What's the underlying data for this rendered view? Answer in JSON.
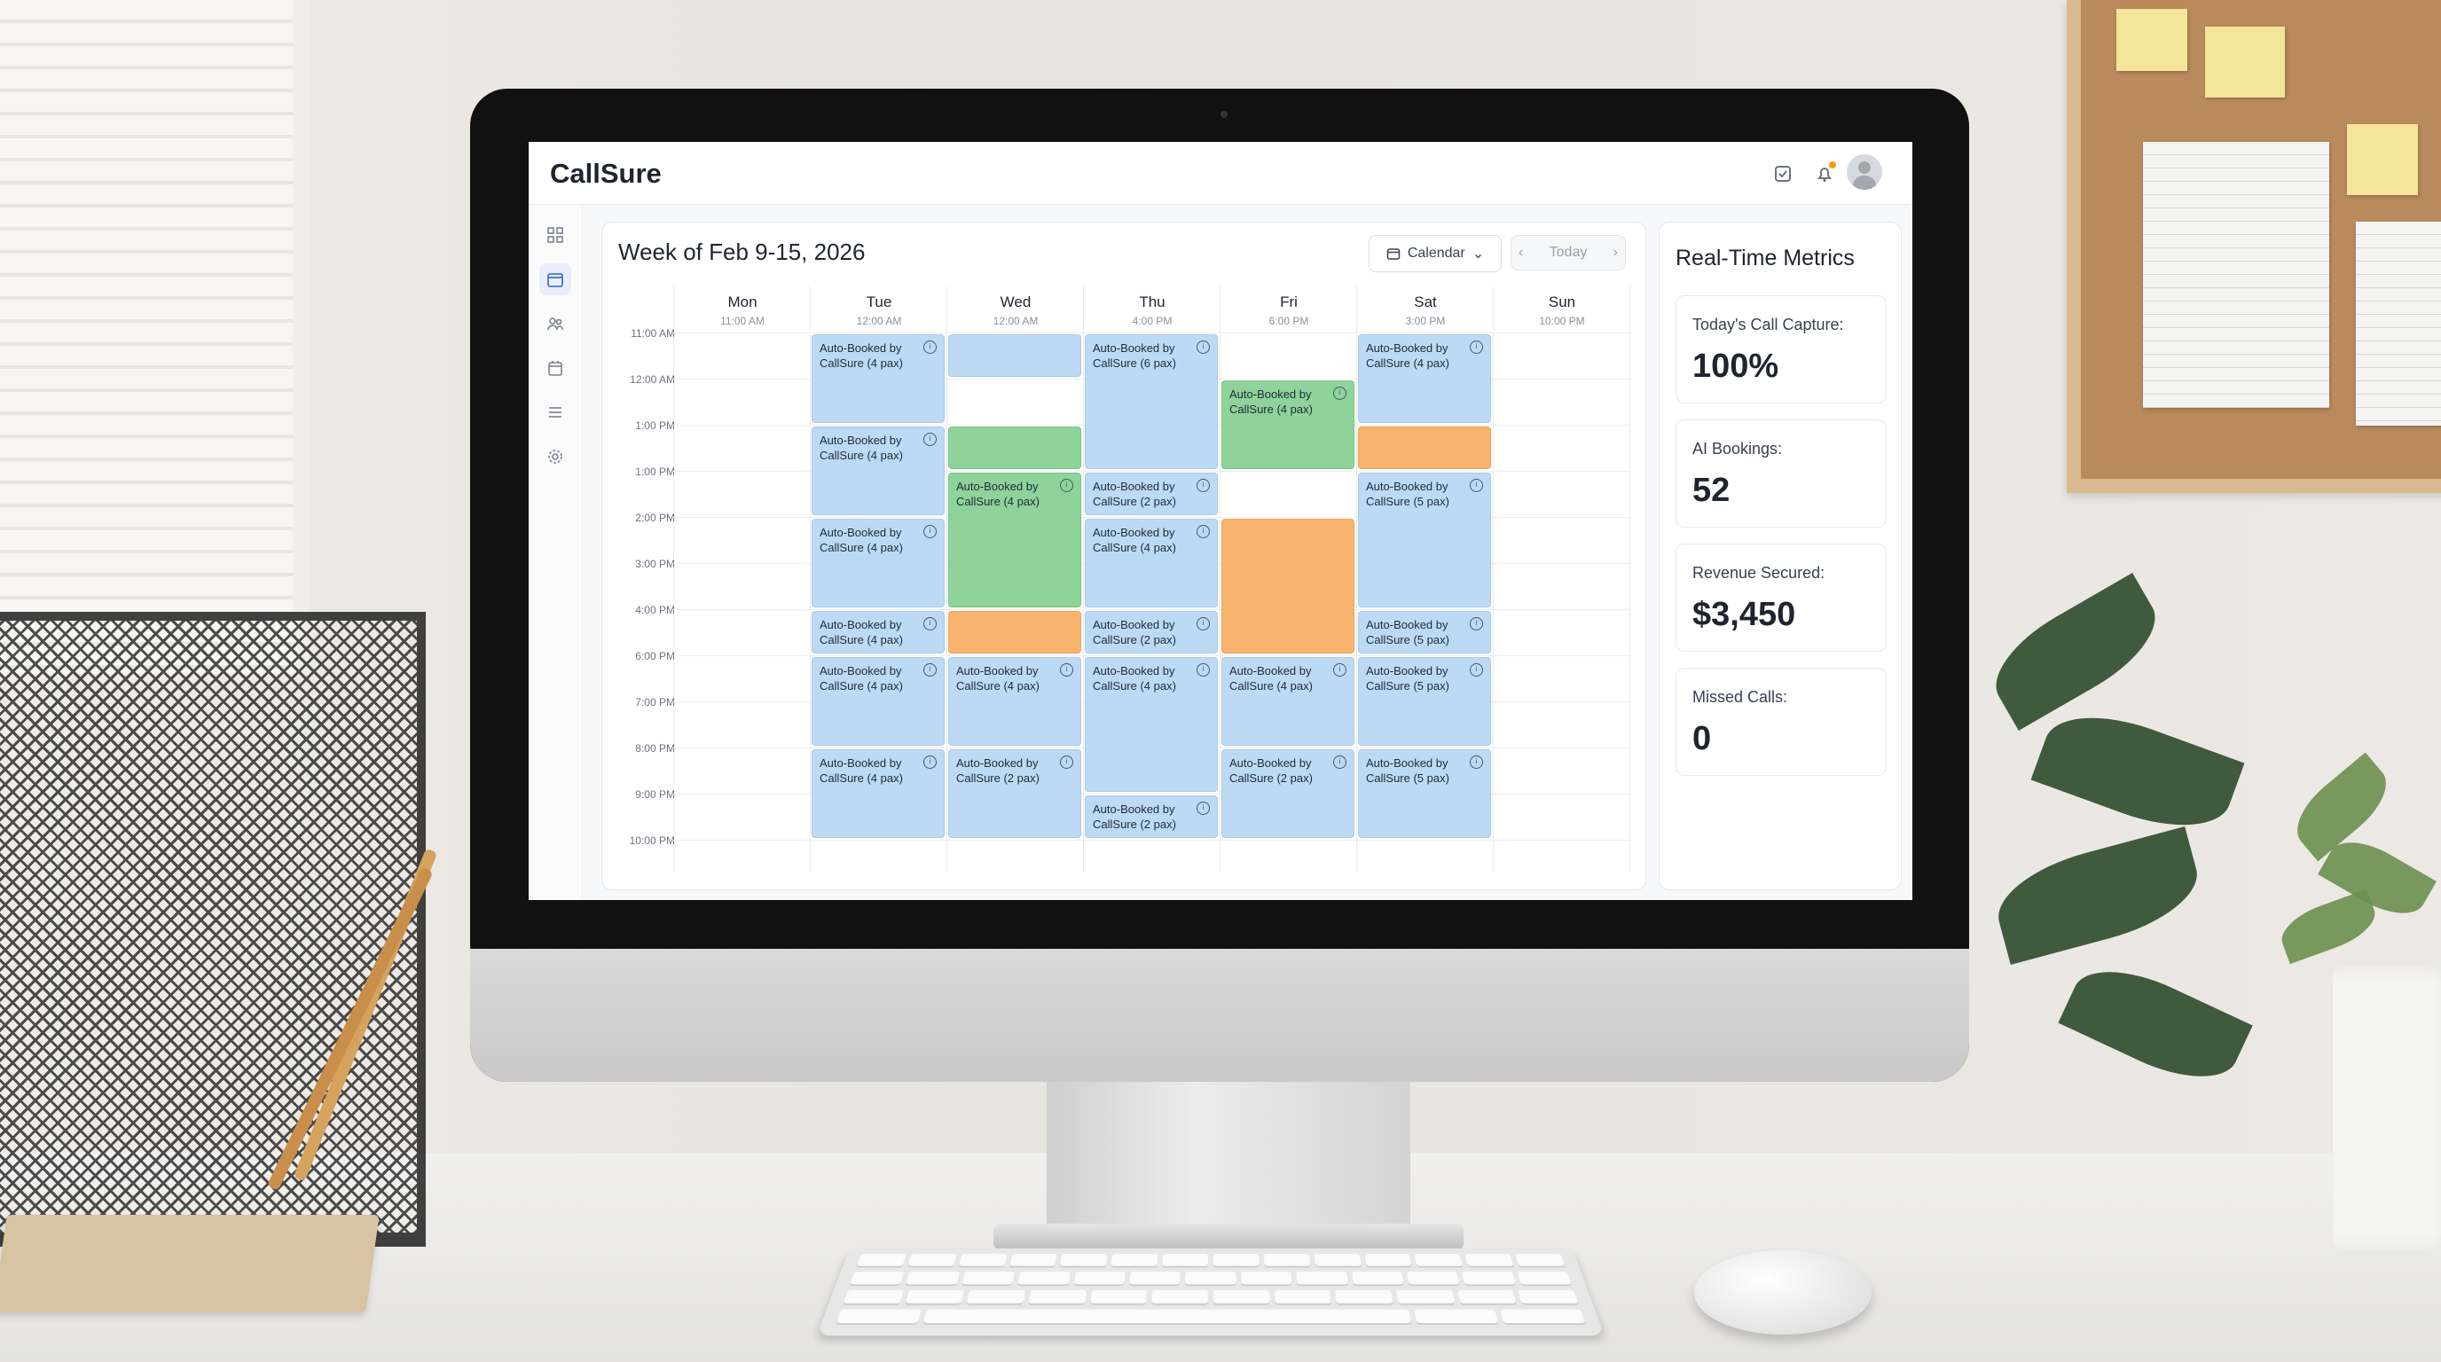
{
  "app": {
    "brand": "CallSure"
  },
  "calendar": {
    "title": "Week of Feb 9-15, 2026",
    "view_label": "Calendar",
    "today_label": "Today",
    "days": [
      {
        "name": "Mon",
        "time": "11:00 AM"
      },
      {
        "name": "Tue",
        "time": "12:00 AM"
      },
      {
        "name": "Wed",
        "time": "12:00 AM"
      },
      {
        "name": "Thu",
        "time": "4:00 PM"
      },
      {
        "name": "Fri",
        "time": "6:00 PM"
      },
      {
        "name": "Sat",
        "time": "3:00 PM"
      },
      {
        "name": "Sun",
        "time": "10:00 PM"
      }
    ],
    "time_slots": [
      "11:00 AM",
      "12:00 AM",
      "1:00 PM",
      "1:00 PM",
      "2:00 PM",
      "3:00 PM",
      "4:00 PM",
      "6:00 PM",
      "7:00 PM",
      "8:00 PM",
      "9:00 PM",
      "10:00 PM"
    ],
    "events": [
      {
        "day": 1,
        "start": 0,
        "span": 2,
        "color": "blue",
        "line1": "Auto-Booked by",
        "line2": "CallSure (4 pax)"
      },
      {
        "day": 1,
        "start": 2,
        "span": 2,
        "color": "blue",
        "line1": "Auto-Booked by",
        "line2": "CallSure (4 pax)"
      },
      {
        "day": 1,
        "start": 4,
        "span": 2,
        "color": "blue",
        "line1": "Auto-Booked by",
        "line2": "CallSure (4 pax)"
      },
      {
        "day": 1,
        "start": 6,
        "span": 1,
        "color": "blue",
        "line1": "Auto-Booked by",
        "line2": "CallSure (4 pax)"
      },
      {
        "day": 1,
        "start": 7,
        "span": 2,
        "color": "blue",
        "line1": "Auto-Booked by",
        "line2": "CallSure (4 pax)"
      },
      {
        "day": 1,
        "start": 9,
        "span": 2,
        "color": "blue",
        "line1": "Auto-Booked by",
        "line2": "CallSure (4 pax)"
      },
      {
        "day": 2,
        "start": 0,
        "span": 1,
        "color": "blue",
        "line1": "",
        "line2": ""
      },
      {
        "day": 2,
        "start": 2,
        "span": 1,
        "color": "green",
        "line1": "",
        "line2": ""
      },
      {
        "day": 2,
        "start": 3,
        "span": 3,
        "color": "green",
        "line1": "Auto-Booked by",
        "line2": "CallSure (4 pax)"
      },
      {
        "day": 2,
        "start": 6,
        "span": 1,
        "color": "orange",
        "line1": "",
        "line2": ""
      },
      {
        "day": 2,
        "start": 7,
        "span": 2,
        "color": "blue",
        "line1": "Auto-Booked by",
        "line2": "CallSure (4 pax)"
      },
      {
        "day": 2,
        "start": 9,
        "span": 2,
        "color": "blue",
        "line1": "Auto-Booked by",
        "line2": "CallSure (2 pax)"
      },
      {
        "day": 3,
        "start": 0,
        "span": 3,
        "color": "blue",
        "line1": "Auto-Booked by",
        "line2": "CallSure (6 pax)"
      },
      {
        "day": 3,
        "start": 3,
        "span": 1,
        "color": "blue",
        "line1": "Auto-Booked by",
        "line2": "CallSure (2 pax)"
      },
      {
        "day": 3,
        "start": 4,
        "span": 2,
        "color": "blue",
        "line1": "Auto-Booked by",
        "line2": "CallSure (4 pax)"
      },
      {
        "day": 3,
        "start": 6,
        "span": 1,
        "color": "blue",
        "line1": "Auto-Booked by",
        "line2": "CallSure (2 pax)"
      },
      {
        "day": 3,
        "start": 7,
        "span": 3,
        "color": "blue",
        "line1": "Auto-Booked by",
        "line2": "CallSure (4 pax)"
      },
      {
        "day": 3,
        "start": 10,
        "span": 1,
        "color": "blue",
        "line1": "Auto-Booked by",
        "line2": "CallSure (2 pax)"
      },
      {
        "day": 4,
        "start": 1,
        "span": 2,
        "color": "green",
        "line1": "Auto-Booked by",
        "line2": "CallSure (4 pax)"
      },
      {
        "day": 4,
        "start": 4,
        "span": 3,
        "color": "orange",
        "line1": "",
        "line2": ""
      },
      {
        "day": 4,
        "start": 7,
        "span": 2,
        "color": "blue",
        "line1": "Auto-Booked by",
        "line2": "CallSure (4 pax)"
      },
      {
        "day": 4,
        "start": 9,
        "span": 2,
        "color": "blue",
        "line1": "Auto-Booked by",
        "line2": "CallSure (2 pax)"
      },
      {
        "day": 5,
        "start": 0,
        "span": 2,
        "color": "blue",
        "line1": "Auto-Booked by",
        "line2": "CallSure (4 pax)"
      },
      {
        "day": 5,
        "start": 2,
        "span": 1,
        "color": "orange",
        "line1": "",
        "line2": ""
      },
      {
        "day": 5,
        "start": 3,
        "span": 3,
        "color": "blue",
        "line1": "Auto-Booked by",
        "line2": "CallSure (5 pax)"
      },
      {
        "day": 5,
        "start": 6,
        "span": 1,
        "color": "blue",
        "line1": "Auto-Booked by",
        "line2": "CallSure (5 pax)"
      },
      {
        "day": 5,
        "start": 7,
        "span": 2,
        "color": "blue",
        "line1": "Auto-Booked by",
        "line2": "CallSure (5 pax)"
      },
      {
        "day": 5,
        "start": 9,
        "span": 2,
        "color": "blue",
        "line1": "Auto-Booked by",
        "line2": "CallSure (5 pax)"
      }
    ]
  },
  "metrics": {
    "title": "Real-Time Metrics",
    "items": [
      {
        "label": "Today's Call Capture:",
        "value": "100%"
      },
      {
        "label": "AI Bookings:",
        "value": "52"
      },
      {
        "label": "Revenue Secured:",
        "value": "$3,450"
      },
      {
        "label": "Missed Calls:",
        "value": "0"
      }
    ]
  },
  "icons": {
    "sidebar": [
      "dashboard-icon",
      "calendar-icon",
      "users-icon",
      "schedule-icon",
      "list-icon",
      "settings-icon"
    ],
    "topbar": [
      "tasks-icon",
      "bell-icon",
      "avatar"
    ]
  },
  "colors": {
    "blue": "#bcdaf3",
    "green": "#8ed39a",
    "orange": "#f8b36f",
    "active_sidebar": "#4a74c9"
  }
}
